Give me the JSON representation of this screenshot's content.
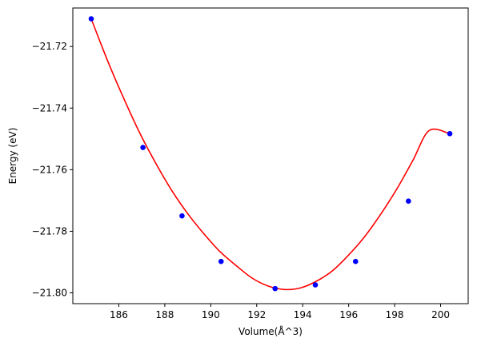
{
  "chart_data": {
    "type": "scatter",
    "title": "",
    "xlabel": "Volume(Å^3)",
    "ylabel": "Energy (eV)",
    "xlim": [
      184.0,
      201.2
    ],
    "ylim": [
      -21.8035,
      -21.7075
    ],
    "x_ticks": [
      186,
      188,
      190,
      192,
      194,
      196,
      198,
      200
    ],
    "x_tick_labels": [
      "186",
      "188",
      "190",
      "192",
      "194",
      "196",
      "198",
      "200"
    ],
    "y_ticks": [
      -21.72,
      -21.74,
      -21.76,
      -21.78,
      -21.8
    ],
    "y_tick_labels": [
      "−21.72",
      "−21.74",
      "−21.76",
      "−21.78",
      "−21.80"
    ],
    "grid": false,
    "legend": "none",
    "series": [
      {
        "kind": "scatter",
        "color": "#0000ff",
        "x": [
          184.8,
          187.05,
          188.75,
          190.45,
          192.8,
          194.55,
          196.3,
          198.6,
          200.4
        ],
        "y": [
          -21.711,
          -21.7528,
          -21.775,
          -21.7898,
          -21.7986,
          -21.7974,
          -21.7898,
          -21.7702,
          -21.7483
        ]
      },
      {
        "kind": "fit-curve",
        "color": "#ff0000",
        "x": [
          184.8,
          185.5,
          186.2,
          186.9,
          187.6,
          188.3,
          189.0,
          189.7,
          190.4,
          191.1,
          191.8,
          192.5,
          193.2,
          193.9,
          194.6,
          195.3,
          196.0,
          196.7,
          197.4,
          198.1,
          198.8,
          199.5,
          200.4
        ],
        "y": [
          -21.711,
          -21.7244,
          -21.7366,
          -21.7479,
          -21.7578,
          -21.7667,
          -21.7743,
          -21.7808,
          -21.7866,
          -21.7911,
          -21.7952,
          -21.7978,
          -21.7989,
          -21.7984,
          -21.7962,
          -21.7928,
          -21.7877,
          -21.7817,
          -21.7744,
          -21.7662,
          -21.7569,
          -21.7473,
          -21.7483
        ]
      }
    ]
  }
}
